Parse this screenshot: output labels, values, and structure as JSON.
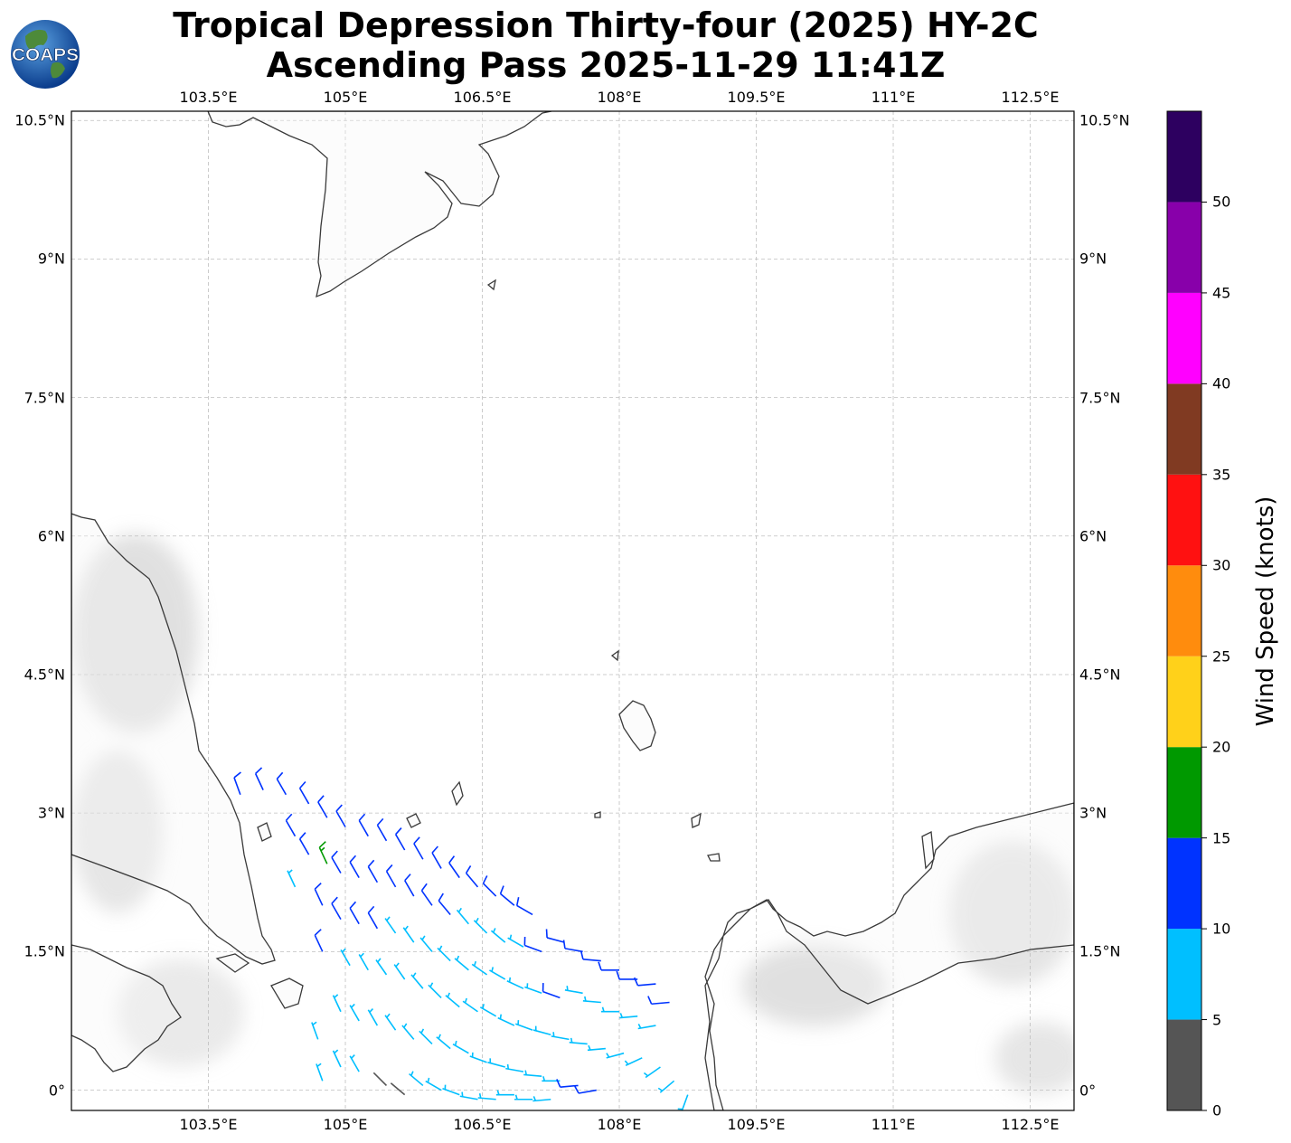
{
  "title": {
    "line1": "Tropical Depression Thirty-four (2025) HY-2C",
    "line2": "Ascending Pass 2025-11-29 11:41Z"
  },
  "logo": {
    "text": "COAPS",
    "icon": "globe-logo-icon"
  },
  "map": {
    "lon_range": [
      102.0,
      112.98
    ],
    "lat_range": [
      -0.22,
      10.6
    ],
    "lon_ticks": [
      "103.5°E",
      "105°E",
      "106.5°E",
      "108°E",
      "109.5°E",
      "111°E",
      "112.5°E"
    ],
    "lon_tick_values": [
      103.5,
      105,
      106.5,
      108,
      109.5,
      111,
      112.5
    ],
    "lat_ticks": [
      "10.5°N",
      "9°N",
      "7.5°N",
      "6°N",
      "4.5°N",
      "3°N",
      "1.5°N",
      "0°"
    ],
    "lat_tick_values": [
      10.5,
      9,
      7.5,
      6,
      4.5,
      3,
      1.5,
      0
    ],
    "grid": true,
    "coastline_color": "#3a3a3a",
    "grid_color": "#bfbfbf",
    "land_shading": "light grey terrain"
  },
  "colorbar": {
    "label": "Wind Speed (knots)",
    "tick_labels": [
      "0",
      "5",
      "10",
      "15",
      "20",
      "25",
      "30",
      "35",
      "40",
      "45",
      "50"
    ],
    "bins": [
      {
        "min": 0,
        "max": 5,
        "color": "#555555"
      },
      {
        "min": 5,
        "max": 10,
        "color": "#00bfff"
      },
      {
        "min": 10,
        "max": 15,
        "color": "#0033ff"
      },
      {
        "min": 15,
        "max": 20,
        "color": "#009900"
      },
      {
        "min": 20,
        "max": 25,
        "color": "#ffd11a"
      },
      {
        "min": 25,
        "max": 30,
        "color": "#ff8c0d"
      },
      {
        "min": 30,
        "max": 35,
        "color": "#ff1111"
      },
      {
        "min": 35,
        "max": 40,
        "color": "#803a22"
      },
      {
        "min": 40,
        "max": 45,
        "color": "#ff00ff"
      },
      {
        "min": 45,
        "max": 50,
        "color": "#8800aa"
      },
      {
        "min": 50,
        "max": 55,
        "color": "#2d0060"
      }
    ]
  },
  "wind_barbs": [
    {
      "lon": 103.85,
      "lat": 3.2,
      "spd": 12,
      "dir": 340
    },
    {
      "lon": 104.1,
      "lat": 3.25,
      "spd": 12,
      "dir": 335
    },
    {
      "lon": 104.35,
      "lat": 3.2,
      "spd": 12,
      "dir": 330
    },
    {
      "lon": 104.6,
      "lat": 3.1,
      "spd": 12,
      "dir": 330
    },
    {
      "lon": 104.8,
      "lat": 2.95,
      "spd": 12,
      "dir": 330
    },
    {
      "lon": 105.0,
      "lat": 2.85,
      "spd": 12,
      "dir": 330
    },
    {
      "lon": 105.25,
      "lat": 2.75,
      "spd": 12,
      "dir": 330
    },
    {
      "lon": 105.45,
      "lat": 2.7,
      "spd": 12,
      "dir": 330
    },
    {
      "lon": 105.65,
      "lat": 2.6,
      "spd": 12,
      "dir": 330
    },
    {
      "lon": 105.85,
      "lat": 2.5,
      "spd": 12,
      "dir": 330
    },
    {
      "lon": 106.05,
      "lat": 2.4,
      "spd": 12,
      "dir": 330
    },
    {
      "lon": 106.25,
      "lat": 2.3,
      "spd": 12,
      "dir": 325
    },
    {
      "lon": 106.45,
      "lat": 2.2,
      "spd": 12,
      "dir": 320
    },
    {
      "lon": 106.65,
      "lat": 2.1,
      "spd": 12,
      "dir": 315
    },
    {
      "lon": 106.85,
      "lat": 2.0,
      "spd": 12,
      "dir": 310
    },
    {
      "lon": 107.05,
      "lat": 1.9,
      "spd": 12,
      "dir": 300
    },
    {
      "lon": 104.45,
      "lat": 2.75,
      "spd": 12,
      "dir": 330
    },
    {
      "lon": 104.6,
      "lat": 2.55,
      "spd": 12,
      "dir": 330
    },
    {
      "lon": 104.8,
      "lat": 2.45,
      "spd": 17,
      "dir": 335
    },
    {
      "lon": 104.95,
      "lat": 2.35,
      "spd": 12,
      "dir": 330
    },
    {
      "lon": 105.15,
      "lat": 2.3,
      "spd": 12,
      "dir": 330
    },
    {
      "lon": 105.35,
      "lat": 2.25,
      "spd": 12,
      "dir": 330
    },
    {
      "lon": 105.55,
      "lat": 2.2,
      "spd": 12,
      "dir": 330
    },
    {
      "lon": 105.75,
      "lat": 2.1,
      "spd": 12,
      "dir": 330
    },
    {
      "lon": 105.95,
      "lat": 2.0,
      "spd": 12,
      "dir": 325
    },
    {
      "lon": 106.15,
      "lat": 1.9,
      "spd": 12,
      "dir": 320
    },
    {
      "lon": 106.35,
      "lat": 1.8,
      "spd": 8,
      "dir": 320
    },
    {
      "lon": 106.55,
      "lat": 1.7,
      "spd": 8,
      "dir": 315
    },
    {
      "lon": 106.75,
      "lat": 1.6,
      "spd": 8,
      "dir": 310
    },
    {
      "lon": 106.95,
      "lat": 1.55,
      "spd": 8,
      "dir": 300
    },
    {
      "lon": 107.15,
      "lat": 1.5,
      "spd": 12,
      "dir": 290
    },
    {
      "lon": 107.4,
      "lat": 1.6,
      "spd": 12,
      "dir": 285
    },
    {
      "lon": 107.6,
      "lat": 1.5,
      "spd": 12,
      "dir": 280
    },
    {
      "lon": 107.8,
      "lat": 1.4,
      "spd": 12,
      "dir": 275
    },
    {
      "lon": 108.0,
      "lat": 1.3,
      "spd": 12,
      "dir": 270
    },
    {
      "lon": 108.2,
      "lat": 1.2,
      "spd": 12,
      "dir": 270
    },
    {
      "lon": 108.4,
      "lat": 1.15,
      "spd": 12,
      "dir": 265
    },
    {
      "lon": 108.55,
      "lat": 0.95,
      "spd": 12,
      "dir": 265
    },
    {
      "lon": 104.45,
      "lat": 2.2,
      "spd": 8,
      "dir": 335
    },
    {
      "lon": 104.75,
      "lat": 2.0,
      "spd": 12,
      "dir": 335
    },
    {
      "lon": 104.95,
      "lat": 1.85,
      "spd": 12,
      "dir": 330
    },
    {
      "lon": 105.15,
      "lat": 1.8,
      "spd": 12,
      "dir": 330
    },
    {
      "lon": 105.35,
      "lat": 1.75,
      "spd": 12,
      "dir": 330
    },
    {
      "lon": 105.55,
      "lat": 1.7,
      "spd": 8,
      "dir": 325
    },
    {
      "lon": 105.75,
      "lat": 1.6,
      "spd": 8,
      "dir": 325
    },
    {
      "lon": 105.95,
      "lat": 1.5,
      "spd": 8,
      "dir": 320
    },
    {
      "lon": 106.15,
      "lat": 1.4,
      "spd": 8,
      "dir": 315
    },
    {
      "lon": 106.35,
      "lat": 1.3,
      "spd": 8,
      "dir": 310
    },
    {
      "lon": 106.55,
      "lat": 1.25,
      "spd": 8,
      "dir": 305
    },
    {
      "lon": 106.75,
      "lat": 1.2,
      "spd": 8,
      "dir": 300
    },
    {
      "lon": 106.95,
      "lat": 1.1,
      "spd": 8,
      "dir": 295
    },
    {
      "lon": 107.15,
      "lat": 1.05,
      "spd": 8,
      "dir": 290
    },
    {
      "lon": 107.35,
      "lat": 1.0,
      "spd": 12,
      "dir": 290
    },
    {
      "lon": 107.6,
      "lat": 1.05,
      "spd": 8,
      "dir": 280
    },
    {
      "lon": 107.8,
      "lat": 0.95,
      "spd": 8,
      "dir": 275
    },
    {
      "lon": 108.0,
      "lat": 0.85,
      "spd": 8,
      "dir": 270
    },
    {
      "lon": 108.2,
      "lat": 0.8,
      "spd": 8,
      "dir": 265
    },
    {
      "lon": 108.4,
      "lat": 0.7,
      "spd": 8,
      "dir": 260
    },
    {
      "lon": 104.75,
      "lat": 1.5,
      "spd": 12,
      "dir": 335
    },
    {
      "lon": 105.05,
      "lat": 1.35,
      "spd": 8,
      "dir": 330
    },
    {
      "lon": 105.25,
      "lat": 1.3,
      "spd": 8,
      "dir": 330
    },
    {
      "lon": 105.45,
      "lat": 1.25,
      "spd": 8,
      "dir": 325
    },
    {
      "lon": 105.65,
      "lat": 1.2,
      "spd": 8,
      "dir": 325
    },
    {
      "lon": 105.85,
      "lat": 1.1,
      "spd": 8,
      "dir": 320
    },
    {
      "lon": 106.05,
      "lat": 1.0,
      "spd": 8,
      "dir": 315
    },
    {
      "lon": 106.25,
      "lat": 0.9,
      "spd": 8,
      "dir": 310
    },
    {
      "lon": 106.45,
      "lat": 0.85,
      "spd": 8,
      "dir": 305
    },
    {
      "lon": 106.65,
      "lat": 0.8,
      "spd": 8,
      "dir": 300
    },
    {
      "lon": 106.85,
      "lat": 0.7,
      "spd": 8,
      "dir": 295
    },
    {
      "lon": 107.05,
      "lat": 0.65,
      "spd": 8,
      "dir": 290
    },
    {
      "lon": 107.25,
      "lat": 0.6,
      "spd": 8,
      "dir": 285
    },
    {
      "lon": 107.45,
      "lat": 0.55,
      "spd": 8,
      "dir": 280
    },
    {
      "lon": 107.65,
      "lat": 0.5,
      "spd": 8,
      "dir": 275
    },
    {
      "lon": 107.85,
      "lat": 0.45,
      "spd": 8,
      "dir": 265
    },
    {
      "lon": 108.05,
      "lat": 0.4,
      "spd": 8,
      "dir": 255
    },
    {
      "lon": 108.25,
      "lat": 0.35,
      "spd": 8,
      "dir": 245
    },
    {
      "lon": 108.45,
      "lat": 0.25,
      "spd": 8,
      "dir": 235
    },
    {
      "lon": 104.7,
      "lat": 0.55,
      "spd": 8,
      "dir": 340
    },
    {
      "lon": 104.95,
      "lat": 0.85,
      "spd": 8,
      "dir": 335
    },
    {
      "lon": 105.15,
      "lat": 0.75,
      "spd": 8,
      "dir": 330
    },
    {
      "lon": 105.35,
      "lat": 0.7,
      "spd": 8,
      "dir": 330
    },
    {
      "lon": 105.55,
      "lat": 0.65,
      "spd": 8,
      "dir": 325
    },
    {
      "lon": 105.75,
      "lat": 0.55,
      "spd": 8,
      "dir": 320
    },
    {
      "lon": 105.95,
      "lat": 0.5,
      "spd": 8,
      "dir": 315
    },
    {
      "lon": 106.15,
      "lat": 0.45,
      "spd": 8,
      "dir": 310
    },
    {
      "lon": 106.35,
      "lat": 0.4,
      "spd": 8,
      "dir": 300
    },
    {
      "lon": 106.55,
      "lat": 0.3,
      "spd": 8,
      "dir": 290
    },
    {
      "lon": 106.75,
      "lat": 0.25,
      "spd": 8,
      "dir": 285
    },
    {
      "lon": 106.95,
      "lat": 0.2,
      "spd": 8,
      "dir": 280
    },
    {
      "lon": 107.15,
      "lat": 0.15,
      "spd": 8,
      "dir": 275
    },
    {
      "lon": 107.35,
      "lat": 0.1,
      "spd": 8,
      "dir": 270
    },
    {
      "lon": 107.55,
      "lat": 0.05,
      "spd": 12,
      "dir": 265
    },
    {
      "lon": 107.75,
      "lat": 0.0,
      "spd": 12,
      "dir": 260
    },
    {
      "lon": 104.75,
      "lat": 0.1,
      "spd": 8,
      "dir": 340
    },
    {
      "lon": 104.95,
      "lat": 0.25,
      "spd": 8,
      "dir": 335
    },
    {
      "lon": 105.15,
      "lat": 0.2,
      "spd": 8,
      "dir": 330
    },
    {
      "lon": 105.45,
      "lat": 0.05,
      "spd": 3,
      "dir": 315
    },
    {
      "lon": 105.65,
      "lat": -0.05,
      "spd": 3,
      "dir": 310
    },
    {
      "lon": 105.85,
      "lat": 0.05,
      "spd": 8,
      "dir": 310
    },
    {
      "lon": 106.05,
      "lat": 0.0,
      "spd": 8,
      "dir": 300
    },
    {
      "lon": 106.25,
      "lat": -0.05,
      "spd": 8,
      "dir": 290
    },
    {
      "lon": 106.45,
      "lat": -0.1,
      "spd": 8,
      "dir": 280
    },
    {
      "lon": 106.65,
      "lat": -0.1,
      "spd": 8,
      "dir": 275
    },
    {
      "lon": 106.85,
      "lat": -0.05,
      "spd": 8,
      "dir": 270
    },
    {
      "lon": 107.05,
      "lat": -0.1,
      "spd": 8,
      "dir": 270
    },
    {
      "lon": 107.25,
      "lat": -0.1,
      "spd": 8,
      "dir": 265
    },
    {
      "lon": 108.6,
      "lat": 0.1,
      "spd": 8,
      "dir": 230
    },
    {
      "lon": 108.75,
      "lat": -0.05,
      "spd": 8,
      "dir": 200
    }
  ]
}
